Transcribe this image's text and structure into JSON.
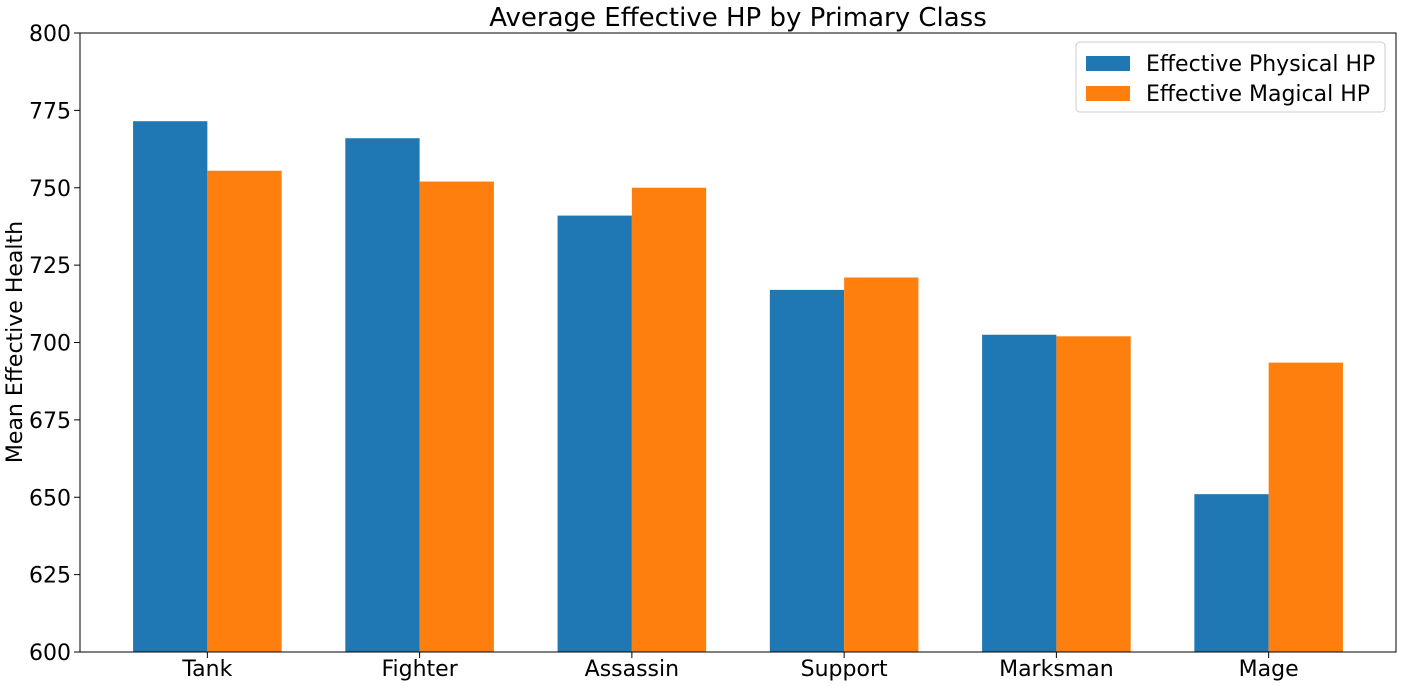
{
  "chart_data": {
    "type": "bar",
    "title": "Average Effective HP by Primary Class",
    "xlabel": "",
    "ylabel": "Mean Effective Health",
    "categories": [
      "Tank",
      "Fighter",
      "Assassin",
      "Support",
      "Marksman",
      "Mage"
    ],
    "series": [
      {
        "name": "Effective Physical HP",
        "color": "#1f77b4",
        "values": [
          771.5,
          766,
          741,
          717,
          702.5,
          651
        ]
      },
      {
        "name": "Effective Magical HP",
        "color": "#ff7f0e",
        "values": [
          755.5,
          752,
          750,
          721,
          702,
          693.5
        ]
      }
    ],
    "ylim": [
      600,
      800
    ],
    "yticks": [
      600,
      625,
      650,
      675,
      700,
      725,
      750,
      775,
      800
    ],
    "ytick_labels": [
      "600",
      "625",
      "650",
      "675",
      "700",
      "725",
      "750",
      "775",
      "800"
    ],
    "grid": false,
    "legend_position": "top-right"
  }
}
